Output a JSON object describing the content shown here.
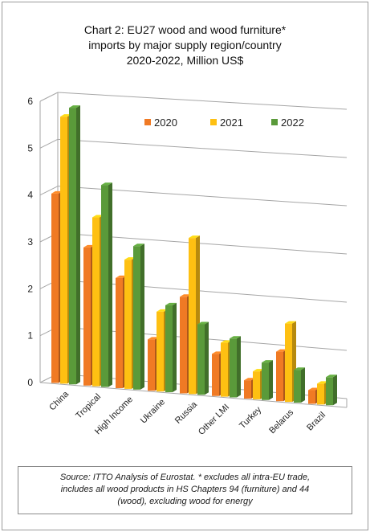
{
  "chart_data": {
    "type": "bar",
    "title_lines": [
      "Chart 2: EU27 wood and wood furniture*",
      "imports by major supply region/country",
      "2020-2022, Million US$"
    ],
    "categories": [
      "China",
      "Tropical",
      "High Income",
      "Ukraine",
      "Russia",
      "Other LMI",
      "Turkey",
      "Belarus",
      "Brazil"
    ],
    "series": [
      {
        "name": "2020",
        "color": "#f07a24",
        "values": [
          4.05,
          2.95,
          2.35,
          1.1,
          2.05,
          0.9,
          0.4,
          1.05,
          0.3
        ]
      },
      {
        "name": "2021",
        "color": "#fec012",
        "values": [
          5.7,
          3.6,
          2.75,
          1.7,
          3.3,
          1.15,
          0.6,
          1.65,
          0.45
        ]
      },
      {
        "name": "2022",
        "color": "#5a9a3a",
        "values": [
          5.9,
          4.3,
          3.05,
          1.85,
          1.5,
          1.25,
          0.8,
          0.7,
          0.6
        ]
      }
    ],
    "ylim": [
      0,
      6
    ],
    "yticks": [
      "0",
      "1",
      "2",
      "3",
      "4",
      "5",
      "6"
    ],
    "grid": true,
    "legend_position": "top-right",
    "source_lines": [
      "Source: ITTO Analysis of Eurostat. * excludes all intra-EU trade,",
      "includes all wood products in HS Chapters 94 (furniture) and 44",
      "(wood), excluding wood for energy"
    ]
  }
}
